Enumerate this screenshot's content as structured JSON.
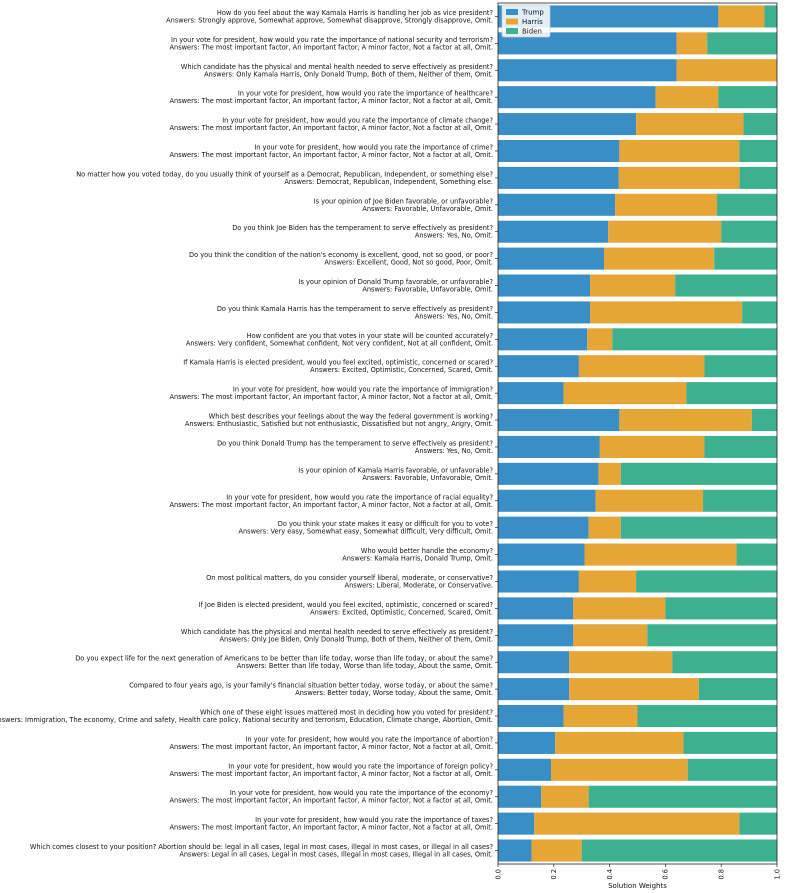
{
  "chart_data": {
    "type": "bar",
    "orientation": "horizontal",
    "stacked": true,
    "title": "",
    "xlabel": "Solution Weights",
    "ylabel": "",
    "xlim": [
      0.0,
      1.0
    ],
    "xticks": [
      "0.0",
      "0.2",
      "0.4",
      "0.6",
      "0.8",
      "1.0"
    ],
    "legend": {
      "placement": "top-left",
      "entries": [
        "Trump",
        "Harris",
        "Biden"
      ]
    },
    "colors": {
      "Trump": "#3a8ec6",
      "Harris": "#e6a537",
      "Biden": "#3cb08f"
    },
    "questions": [
      {
        "q": "How do you feel about the way Kamala Harris is handling her job as vice president?",
        "a": "Answers: Strongly approve, Somewhat approve, Somewhat disapprove, Strongly disapprove, Omit."
      },
      {
        "q": "In your vote for president, how would you rate the importance of national security and terrorism?",
        "a": "Answers: The most important factor, An important factor, A minor factor, Not a factor at all, Omit."
      },
      {
        "q": "Which candidate has the physical and mental health needed to serve effectively as president?",
        "a": "Answers: Only Kamala Harris, Only Donald Trump, Both of them, Neither of them, Omit."
      },
      {
        "q": "In your vote for president, how would you rate the importance of healthcare?",
        "a": "Answers: The most important factor, An important factor, A minor factor, Not a factor at all, Omit."
      },
      {
        "q": "In your vote for president, how would you rate the importance of climate change?",
        "a": "Answers: The most important factor, An important factor, A minor factor, Not a factor at all, Omit."
      },
      {
        "q": "In your vote for president, how would you rate the importance of crime?",
        "a": "Answers: The most important factor, An important factor, A minor factor, Not a factor at all, Omit."
      },
      {
        "q": "No matter how you voted today, do you usually think of yourself as a Democrat, Republican, Independent, or something else?",
        "a": "Answers: Democrat, Republican, Independent, Something else."
      },
      {
        "q": "Is your opinion of Joe Biden favorable, or unfavorable?",
        "a": "Answers: Favorable, Unfavorable, Omit."
      },
      {
        "q": "Do you think Joe Biden has the temperament to serve effectively as president?",
        "a": "Answers: Yes, No, Omit."
      },
      {
        "q": "Do you think the condition of the nation's economy is excellent, good, not so good, or poor?",
        "a": "Answers: Excellent, Good, Not so good, Poor, Omit."
      },
      {
        "q": "Is your opinion of Donald Trump favorable, or unfavorable?",
        "a": "Answers: Favorable, Unfavorable, Omit."
      },
      {
        "q": "Do you think Kamala Harris has the temperament to serve effectively as president?",
        "a": "Answers: Yes, No, Omit."
      },
      {
        "q": "How confident are you that votes in your state will be counted accurately?",
        "a": "Answers: Very confident, Somewhat confident, Not very confident, Not at all confident, Omit."
      },
      {
        "q": "If Kamala Harris is elected president, would you feel excited, optimistic, concerned or scared?",
        "a": "Answers: Excited, Optimistic, Concerned, Scared, Omit."
      },
      {
        "q": "In your vote for president, how would you rate the importance of immigration?",
        "a": "Answers: The most important factor, An important factor, A minor factor, Not a factor at all, Omit."
      },
      {
        "q": "Which best describes your feelings about the way the federal government is working?",
        "a": "Answers: Enthusiastic, Satisfied but not enthusiastic, Dissatisfied but not angry, Angry, Omit."
      },
      {
        "q": "Do you think Donald Trump has the temperament to serve effectively as president?",
        "a": "Answers: Yes, No, Omit."
      },
      {
        "q": "Is your opinion of Kamala Harris favorable, or unfavorable?",
        "a": "Answers: Favorable, Unfavorable, Omit."
      },
      {
        "q": "In your vote for president, how would you rate the importance of racial equality?",
        "a": "Answers: The most important factor, An important factor, A minor factor, Not a factor at all, Omit."
      },
      {
        "q": "Do you think your state makes it easy or difficult for you to vote?",
        "a": "Answers: Very easy, Somewhat easy, Somewhat difficult, Very difficult, Omit."
      },
      {
        "q": "Who would better handle the economy?",
        "a": "Answers: Kamala Harris, Donald Trump, Omit."
      },
      {
        "q": "On most political matters, do you consider yourself liberal, moderate, or conservative?",
        "a": "Answers: Liberal, Moderate, or Conservative."
      },
      {
        "q": "If Joe Biden is elected president, would you feel excited, optimistic, concerned or scared?",
        "a": "Answers: Excited, Optimistic, Concerned, Scared, Omit."
      },
      {
        "q": "Which candidate has the physical and mental health needed to serve effectively as president?",
        "a": "Answers: Only Joe Biden, Only Donald Trump, Both of them, Neither of them, Omit."
      },
      {
        "q": "Do you expect life for the next generation of Americans to be better than life today, worse than life today, or about the same?",
        "a": "Answers: Better than life today, Worse than life today, About the same, Omit."
      },
      {
        "q": "Compared to four years ago, is your family's financial situation better today, worse today, or about the same?",
        "a": "Answers: Better today, Worse today, About the same, Omit."
      },
      {
        "q": "Which one of these eight issues mattered most in deciding how you voted for president?",
        "a": "Answers: Immigration, The economy, Crime and safety, Health care policy, National security and terrorism, Education, Climate change, Abortion, Omit."
      },
      {
        "q": "In your vote for president, how would you rate the importance of abortion?",
        "a": "Answers: The most important factor, An important factor, A minor factor, Not a factor at all, Omit."
      },
      {
        "q": "In your vote for president, how would you rate the importance of foreign policy?",
        "a": "Answers: The most important factor, An important factor, A minor factor, Not a factor at all, Omit."
      },
      {
        "q": "In your vote for president, how would you rate the importance of the economy?",
        "a": "Answers: The most important factor, An important factor, A minor factor, Not a factor at all, Omit."
      },
      {
        "q": "In your vote for president, how would you rate the importance of taxes?",
        "a": "Answers: The most important factor, An important factor, A minor factor, Not a factor at all, Omit."
      },
      {
        "q": "Which comes closest to your position? Abortion should be: legal in all cases, legal in most cases, illegal in most cases, or illegal in all cases?",
        "a": "Answers: Legal in all cases, Legal in most cases, Illegal in most cases, Illegal in all cases, Omit."
      }
    ],
    "series": [
      {
        "name": "Trump",
        "values": [
          0.79,
          0.64,
          0.64,
          0.565,
          0.495,
          0.435,
          0.433,
          0.42,
          0.395,
          0.38,
          0.33,
          0.33,
          0.32,
          0.29,
          0.235,
          0.435,
          0.365,
          0.36,
          0.35,
          0.325,
          0.31,
          0.29,
          0.27,
          0.27,
          0.255,
          0.255,
          0.235,
          0.205,
          0.19,
          0.155,
          0.13,
          0.12
        ]
      },
      {
        "name": "Harris",
        "values": [
          0.165,
          0.11,
          0.36,
          0.225,
          0.385,
          0.43,
          0.433,
          0.365,
          0.405,
          0.395,
          0.305,
          0.545,
          0.09,
          0.45,
          0.44,
          0.475,
          0.375,
          0.08,
          0.385,
          0.115,
          0.545,
          0.205,
          0.33,
          0.265,
          0.37,
          0.465,
          0.265,
          0.46,
          0.49,
          0.17,
          0.735,
          0.18
        ]
      },
      {
        "name": "Biden",
        "values": [
          0.045,
          0.25,
          0.0,
          0.21,
          0.12,
          0.135,
          0.134,
          0.215,
          0.2,
          0.225,
          0.365,
          0.125,
          0.59,
          0.26,
          0.325,
          0.09,
          0.26,
          0.56,
          0.265,
          0.56,
          0.145,
          0.505,
          0.4,
          0.465,
          0.375,
          0.28,
          0.5,
          0.335,
          0.32,
          0.675,
          0.135,
          0.7
        ]
      }
    ]
  }
}
